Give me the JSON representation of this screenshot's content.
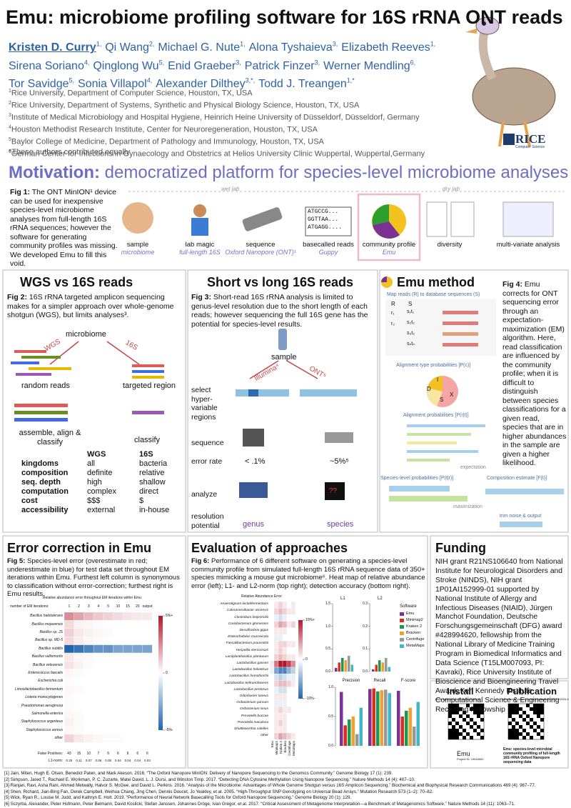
{
  "header": {
    "title": "Emu: microbiome profiling software for 16S rRNA ONT reads",
    "authors": [
      {
        "name": "Kristen D. Curry",
        "sup": "1,"
      },
      {
        "name": "Qi Wang",
        "sup": "2,"
      },
      {
        "name": "Michael G. Nute",
        "sup": "1,"
      },
      {
        "name": "Alona Tyshaieva",
        "sup": "3,"
      },
      {
        "name": "Elizabeth Reeves",
        "sup": "1,"
      },
      {
        "name": "Sirena Soriano",
        "sup": "4,"
      },
      {
        "name": "Qinglong Wu",
        "sup": "5,"
      },
      {
        "name": "Enid Graeber",
        "sup": "3,"
      },
      {
        "name": "Patrick Finzer",
        "sup": "3,"
      },
      {
        "name": "Werner Mendling",
        "sup": "6,"
      },
      {
        "name": "Tor Savidge",
        "sup": "5,"
      },
      {
        "name": "Sonia Villapol",
        "sup": "4,"
      },
      {
        "name": "Alexander Dilthey",
        "sup": "3,*,"
      },
      {
        "name": "Todd J. Treangen",
        "sup": "1,*"
      }
    ],
    "affiliations": [
      {
        "sup": "1",
        "text": "Rice University, Department of Computer Science, Houston, TX, USA"
      },
      {
        "sup": "2",
        "text": "Rice University, Department of Systems, Synthetic and Physical Biology Science, Houston, TX, USA"
      },
      {
        "sup": "3",
        "text": "Institute of Medical Microbiology and Hospital Hygiene, Heinrich Heine University of Düsseldorf, Düsseldorf, Germany"
      },
      {
        "sup": "4",
        "text": "Houston Methodist Research Institute, Center for Neuroregeneration, Houston, TX, USA"
      },
      {
        "sup": "5",
        "text": "Baylor College of Medicine, Department of Pathology and Immunology, Houston, TX, USA"
      },
      {
        "sup": "6",
        "text": "German Center for Infections in Gynaecology and Obstetrics at Helios University Clinic Wuppertal, Wuppertal,Germany"
      }
    ],
    "note": "*These authors contributed equally",
    "logo": "RICE",
    "logo_sub": "Computer Science"
  },
  "motivation": {
    "heading": "Motivation:",
    "heading_rest": "democratized platform for species-level microbiome analyses",
    "fig": {
      "label": "Fig 1:",
      "text": "The ONT MinION¹ device can be used for inexpensive species-level microbiome analyses from full-length 16S rRNA sequences; however the software for generating community profiles was missing. We developed Emu to fill this void."
    },
    "wet_lab": "wet lab",
    "dry_lab": "dry lab",
    "reads": [
      "ATGCCG...",
      "GGTTAA...",
      "ATGAGG...."
    ],
    "steps": [
      {
        "label": "sample",
        "sub": "microbiome"
      },
      {
        "label": "lab magic",
        "sub": "full-length 16S"
      },
      {
        "label": "sequence",
        "sub": "Oxford Nanopore (ONT)¹"
      },
      {
        "label": "basecalled reads",
        "sub": "Guppy"
      },
      {
        "label": "community profile",
        "sub": "Emu"
      },
      {
        "label": "diversity"
      },
      {
        "label": "multi-variate analysis"
      }
    ]
  },
  "wgs": {
    "heading": "WGS vs 16S reads",
    "fig": {
      "label": "Fig 2:",
      "text": "16S rRNA targeted amplicon sequencing makes for a simpler approach over whole-genome shotgun (WGS), but limits analyses³."
    },
    "microbiome": "microbiome",
    "left_arrow": "WGS",
    "right_arrow": "16S",
    "random_reads": "random reads",
    "targeted": "targeted region",
    "assemble": "assemble, align & classify",
    "classify": "classify",
    "table": {
      "headers": [
        "WGS",
        "16S"
      ],
      "rows": [
        [
          "kingdoms",
          "all",
          "bacteria"
        ],
        [
          "composition",
          "definite",
          "relative"
        ],
        [
          "seq. depth",
          "high",
          "shallow"
        ],
        [
          "computation",
          "complex",
          "direct"
        ],
        [
          "cost",
          "$$$",
          "$"
        ],
        [
          "accessibility",
          "external",
          "in-house"
        ]
      ]
    }
  },
  "short_long": {
    "heading": "Short vs long 16S reads",
    "fig": {
      "label": "Fig 3:",
      "text": "Short-read 16S rRNA analysis is limited to genus-level resolution due to the short length of each reads; however sequencing the full 16S gene has the potential for species-level results."
    },
    "sample": "sample",
    "illumina": "Illumina⁴",
    "ont": "ONT⁵",
    "select": "select hyper-variable regions",
    "sequence": "sequence",
    "error_rate": "error rate",
    "short_error": "< .1%",
    "long_error": "~5%⁵",
    "analyze": "analyze",
    "unknown": "??",
    "resolution": "resolution potential",
    "genus": "genus",
    "species": "species"
  },
  "emu": {
    "heading": "Emu method",
    "fig": {
      "label": "Fig 4:",
      "text": "Emu corrects for ONT sequencing error through an expectation-maximization (EM) algorithm. Here, read classification are influenced by the community profile; when it is difficult to distinguish between species classifications for a given read, species that are in higher abundances in the sample are given a higher likelihood."
    },
    "map": "Map reads (R) to database sequences (S)",
    "r": "R",
    "s": "S",
    "reads": [
      "r₁",
      "r₂"
    ],
    "seqs": [
      "s₁t₁",
      "s₂t₂",
      "s₃t₂",
      "sₙtₙ"
    ],
    "type_prob": "Alignment type probabilities [P(c)]",
    "pie_labels": [
      "I",
      "D",
      "X",
      "S"
    ],
    "align_prob": "Alignment probabilities [P(r|t)]",
    "expectation": "expectation",
    "species_prob": "Species-level probabilities [P(t|r)]",
    "composition": "Composition estimate [F(t)]",
    "maximization": "maximization",
    "trim": "trim noise & output"
  },
  "error": {
    "heading": "Error correction in Emu",
    "fig": {
      "label": "Fig 5:",
      "text": "Species-level error (overestimate in red; underestimate in blue) for test data set throughout EM iterations within Emu. Furthest left column is synonymous to classification without error-correction; furthest right is Emu results."
    },
    "heatmap": {
      "title": "Relative abundance error throughout EM iterations within Emu",
      "iteration_label": "number of EM iterations:",
      "columns": [
        1,
        2,
        3,
        4,
        5,
        10,
        15,
        20,
        "output"
      ],
      "rows": [
        "Bacillus halotolerans",
        "Bacillus mojavensis",
        "Bacillus sp. JS",
        "Bacillus sp. MD-5",
        "Bacillus subtilis",
        "Bacillus vallismortis",
        "Bacillus velezensis",
        "Enterococcus faecalis",
        "Escherichia coli",
        "Limosilactobacillus fermentum",
        "Listeria monocytogenes",
        "Pseudomonas aeruginosa",
        "Salmonella enterica",
        "Staphylococcus argenteus",
        "Staphylococcus aureus",
        "other"
      ],
      "values": [
        [
          2.5,
          2,
          1.5,
          1.2,
          1,
          0.8,
          0.6,
          0.5,
          0.5
        ],
        [
          0.8,
          0.3,
          0.2,
          0.1,
          0,
          0,
          0,
          0,
          0
        ],
        [
          1,
          0.5,
          0.3,
          0.2,
          0.1,
          0,
          0,
          0,
          0
        ],
        [
          0.8,
          0.4,
          0.2,
          0.1,
          0,
          0,
          0,
          0,
          0
        ],
        [
          -5,
          -4.5,
          -4,
          -3.5,
          -3.5,
          -3,
          -3,
          -3,
          -3
        ],
        [
          0.5,
          0.2,
          0.1,
          0,
          0,
          0,
          0,
          0,
          0
        ],
        [
          0.6,
          0.3,
          0.1,
          0,
          0,
          0,
          0,
          0,
          0
        ],
        [
          0.2,
          0.1,
          0,
          0,
          0,
          0,
          0,
          0,
          0
        ],
        [
          0.1,
          0,
          0,
          0,
          0,
          0,
          0,
          0,
          0
        ],
        [
          0.2,
          0.1,
          0,
          0,
          0,
          0,
          0,
          0,
          0
        ],
        [
          0.1,
          0,
          0,
          0,
          0,
          0,
          0,
          0,
          0
        ],
        [
          0.1,
          0,
          0,
          0,
          0,
          0,
          0,
          0,
          0
        ],
        [
          0.2,
          0.1,
          0,
          0,
          0,
          0,
          0,
          0,
          0
        ],
        [
          0.3,
          0.1,
          0,
          0,
          0,
          0,
          0,
          0,
          0
        ],
        [
          0.2,
          0.1,
          0,
          0,
          0,
          0,
          0,
          0,
          0
        ],
        [
          1,
          0.5,
          0.3,
          0.2,
          0.1,
          0.1,
          0,
          0,
          0
        ]
      ],
      "clim": [
        -5,
        5
      ],
      "colorbar_ticks": [
        {
          "value": 5,
          "label": "5%+"
        },
        0,
        {
          "value": -5,
          "label": "-5%-"
        }
      ],
      "false_positives_label": "False Positives:",
      "false_positives": [
        43,
        15,
        10,
        7,
        6,
        6,
        6,
        6,
        6
      ],
      "l1_label": "L1-norm:",
      "l1": [
        0.25,
        0.11,
        0.07,
        0.06,
        0.05,
        0.04,
        0.04,
        0.04,
        0.03
      ]
    }
  },
  "evaluation": {
    "heading": "Evaluation of approaches",
    "fig": {
      "label": "Fig 6:",
      "text": "Performance of 6 different software on generating a species-level community profile from simulated full-length 16S rRNA sequence data of 350+ species mimicking a mouse gut microbiome⁶. Heat map of relative abundance error (left); L1- and L2-norm (top right); detection accuracy (bottom right)."
    },
    "heatmap": {
      "title": "Relative Abundance Error",
      "rows": [
        "Anaerotignum lactatifermentans",
        "Calorarnenibacter ascensis",
        "Clostridium beijerinckii",
        "Coriobacterium glomerans",
        "Desulfovibrio gigas",
        "Enterorhabdus mucosicola",
        "Faecalibacterium prausnitzii",
        "Hespellia stercorisuis",
        "Lactiplantibacillus plantarum",
        "Lactobacillus gasseri",
        "Lactobacillus helveticus",
        "Lactobacillus homohiochii",
        "Lactobacillus kefiranofaciens",
        "Lactobacillus pentosus",
        "Odoribacter laneus",
        "Oribacterium parvum",
        "Oribacterium sinus",
        "Prevotella buccae",
        "Prevotella maculosa",
        "Shuttleworthia satelles",
        "other"
      ],
      "values": [
        [
          0,
          1,
          2,
          1,
          0,
          1
        ],
        [
          0,
          2,
          3,
          2,
          1,
          1
        ],
        [
          0,
          -1,
          -2,
          -1,
          0,
          0
        ],
        [
          0,
          2,
          4,
          3,
          1,
          2
        ],
        [
          0,
          1,
          1,
          1,
          0,
          0
        ],
        [
          0,
          -1,
          -1,
          0,
          0,
          0
        ],
        [
          0,
          1,
          2,
          2,
          1,
          1
        ],
        [
          0,
          1,
          2,
          1,
          0,
          0
        ],
        [
          0,
          2,
          3,
          2,
          1,
          1
        ],
        [
          1,
          6,
          10,
          10,
          8,
          5
        ],
        [
          -1,
          -6,
          -8,
          -8,
          -5,
          -3
        ],
        [
          0,
          -2,
          -3,
          -2,
          -1,
          -1
        ],
        [
          0,
          2,
          3,
          3,
          2,
          1
        ],
        [
          0,
          -1,
          -2,
          -2,
          0,
          0
        ],
        [
          0,
          1,
          1,
          1,
          0,
          0
        ],
        [
          0,
          -1,
          -1,
          -1,
          0,
          0
        ],
        [
          0,
          1,
          2,
          1,
          1,
          0
        ],
        [
          0,
          1,
          1,
          1,
          0,
          0
        ],
        [
          0,
          1,
          2,
          1,
          0,
          0
        ],
        [
          0,
          1,
          1,
          1,
          0,
          0
        ],
        [
          0,
          2,
          4,
          3,
          2,
          1
        ]
      ],
      "clim": [
        -10,
        10
      ],
      "colorbar_ticks": [
        {
          "value": 10,
          "label": "10%+"
        },
        0,
        {
          "value": -10,
          "label": "-10%-"
        }
      ]
    },
    "software_label": "Software",
    "software": [
      {
        "name": "Emu",
        "color": "#7b3294"
      },
      {
        "name": "Minimap2",
        "color": "#d7301f"
      },
      {
        "name": "Kraken 2",
        "color": "#1a9850"
      },
      {
        "name": "Bracken",
        "color": "#f0a030"
      },
      {
        "name": "Centrifuge",
        "color": "#999999"
      },
      {
        "name": "MetaMaps",
        "color": "#41b6c4"
      }
    ],
    "l1": {
      "label": "L1",
      "ylim": [
        0,
        1.5
      ],
      "yticks": [
        {
          "value": 0,
          "label": "0.0"
        },
        0.5,
        {
          "value": 1,
          "label": "1.0"
        },
        1.5
      ],
      "values": [
        0.08,
        0.2,
        0.3,
        0.25,
        0.35,
        0.15
      ]
    },
    "l2": {
      "label": "L2",
      "ylim": [
        0,
        0.3
      ],
      "yticks": [
        {
          "value": 0,
          "label": "0.0"
        },
        0.1,
        0.2,
        0.3
      ],
      "values": [
        0.01,
        0.03,
        0.05,
        0.04,
        0.06,
        0.02
      ]
    },
    "accuracy": {
      "categories": [
        "Precision",
        "Recall",
        "F-score"
      ],
      "ylim": [
        0,
        1
      ],
      "yticks": [
        {
          "value": 0,
          "label": "0.0"
        },
        0.5,
        {
          "value": 1,
          "label": "1.0"
        }
      ],
      "values": [
        [
          0.92,
          0.97,
          0.94
        ],
        [
          0.35,
          0.98,
          0.5
        ],
        [
          0.45,
          0.93,
          0.6
        ],
        [
          0.5,
          0.95,
          0.65
        ],
        [
          0.2,
          0.96,
          0.33
        ],
        [
          0.65,
          0.9,
          0.75
        ]
      ]
    }
  },
  "funding": {
    "heading": "Funding",
    "text": "NIH grant R21NS106640 from National Institute for Neurological Disorders and Stroke (NINDS), NIH grant 1P01AI152999-01 supported by National Institute of Allergy and Infectious Diseases (NIAID), Jürgen Manchot Foundation, Deutsche Forschungsgemeinschaft (DFG) award #428994620, fellowship from the National Library of Medicine Training Program in Biomedical Informatics and Data Science (T15LM007093, PI: Kavraki), Rice University Institute of Bioscience and Bioengineering Travel Award, Ken Kennedy Institute Computational Science & Engineering Recruiting Fellowship"
  },
  "links": {
    "install": "Install",
    "install_url": "https://github.com/treangenlab/emu",
    "publication": "Publication",
    "publication_url": "https://www.nature.com/articles/s41592-022-01520-4",
    "app": "Emu",
    "project": "Project ID: 19616062",
    "paper_title": "Emu: species-level microbial community profiling of full-length 16S rRNA Oxford Nanopore sequencing data"
  },
  "references": [
    "[1] Jain, Miten, Hugh E. Olsen, Benedict Paten, and Mark Akeson. 2016. “The Oxford Nanopore MinION: Delivery of Nanopore Sequencing to the Genomics Community.” Genome Biology 17 (1): 239.",
    "[2] Simpson, Jared T., Rachael E. Workman, P. C. Zuzarte, Matei David, L. J. Dursi, and Winston Timp. 2017. “Detecting DNA Cytosine Methylation Using Nanopore Sequencing.” Nature Methods 14 (4): 407–10.",
    "[3] Ranjan, Ravi, Asha Rani, Ahmed Metwally, Halvor S. McGee, and David L. Perkins. 2016. “Analysis of the Microbiome: Advantages of Whole Genome Shotgun versus 16S Amplicon Sequencing.” Biochemical and Biophysical Research Communications 469 (4): 967–77.",
    "[4] Shen, Richard, Jian-Bing Fan, Derek Campbell, Weihua Chang, Jing Chen, Dennis Doucet, Jo Yeakley, et al. 2005. “High-Throughput SNP Genotyping on Universal Bead Arrays.” Mutation Research 573 (1–2): 70–82.",
    "[5] Wick, Ryan R., Louise M. Judd, and Kathryn E. Holt. 2019. “Performance of Neural Network Basecalling Tools for Oxford Nanopore Sequencing.” Genome Biology 20 (1): 129.",
    "[6] Sczyrba, Alexander, Peter Hofmann, Peter Belmann, David Koslicki, Stefan Janssen, Johannes Dröge, Ivan Gregor, et al. 2017. “Critical Assessment of Metagenome Interpretation—a Benchmark of Metagenomics Software.” Nature Methods 14 (11): 1063–71."
  ]
}
